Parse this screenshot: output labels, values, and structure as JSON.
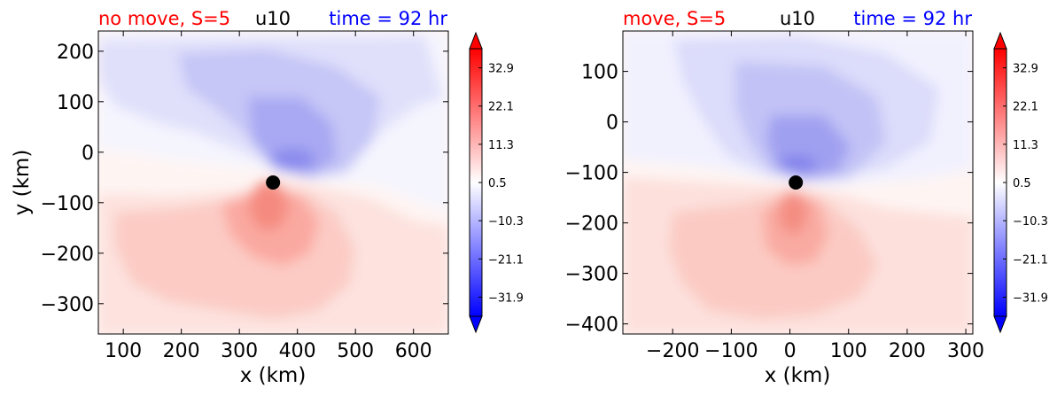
{
  "colors": {
    "title_left": "#ff0000",
    "title_right": "#0000ff",
    "title_center": "#000000",
    "cmap_neg": "#0000ff",
    "cmap_pos": "#ff0000",
    "center_marker": "#000000"
  },
  "colorbar_ticks": [
    "32.9",
    "22.1",
    "11.3",
    "0.5",
    "−10.3",
    "−21.1",
    "−31.9"
  ],
  "chart_data": [
    {
      "type": "heatmap",
      "variable": "u10",
      "title_left": "no move, S=5",
      "title_center": "u10",
      "title_right": "time = 92 hr",
      "xlabel": "x (km)",
      "ylabel": "y (km)",
      "xlim": [
        57,
        660
      ],
      "ylim": [
        -360,
        240
      ],
      "xticks": [
        100,
        200,
        300,
        400,
        500,
        600
      ],
      "yticks": [
        200,
        100,
        0,
        -100,
        -200,
        -300
      ],
      "xtick_labels": [
        "100",
        "200",
        "300",
        "400",
        "500",
        "600"
      ],
      "ytick_labels": [
        "200",
        "100",
        "0",
        "−100",
        "−200",
        "−300"
      ],
      "storm_center": [
        358,
        -60
      ],
      "colorbar": {
        "range": [
          -37.3,
          38.3
        ],
        "ticks": [
          32.9,
          22.1,
          11.3,
          0.5,
          -10.3,
          -21.1,
          -31.9
        ],
        "extend": "both"
      },
      "max_negative": -22,
      "max_positive": 17
    },
    {
      "type": "heatmap",
      "variable": "u10",
      "title_left": "move, S=5",
      "title_center": "u10",
      "title_right": "time = 92 hr",
      "xlabel": "x (km)",
      "ylabel": "",
      "xlim": [
        -285,
        312
      ],
      "ylim": [
        -420,
        180
      ],
      "xticks": [
        -200,
        -100,
        0,
        100,
        200,
        300
      ],
      "yticks": [
        100,
        0,
        -100,
        -200,
        -300,
        -400
      ],
      "xtick_labels": [
        "−200",
        "−100",
        "0",
        "100",
        "200",
        "300"
      ],
      "ytick_labels": [
        "100",
        "0",
        "−100",
        "−200",
        "−300",
        "−400"
      ],
      "storm_center": [
        10,
        -120
      ],
      "colorbar": {
        "range": [
          -37.3,
          38.3
        ],
        "ticks": [
          32.9,
          22.1,
          11.3,
          0.5,
          -10.3,
          -21.1,
          -31.9
        ],
        "extend": "both"
      },
      "max_negative": -20,
      "max_positive": 15
    }
  ]
}
